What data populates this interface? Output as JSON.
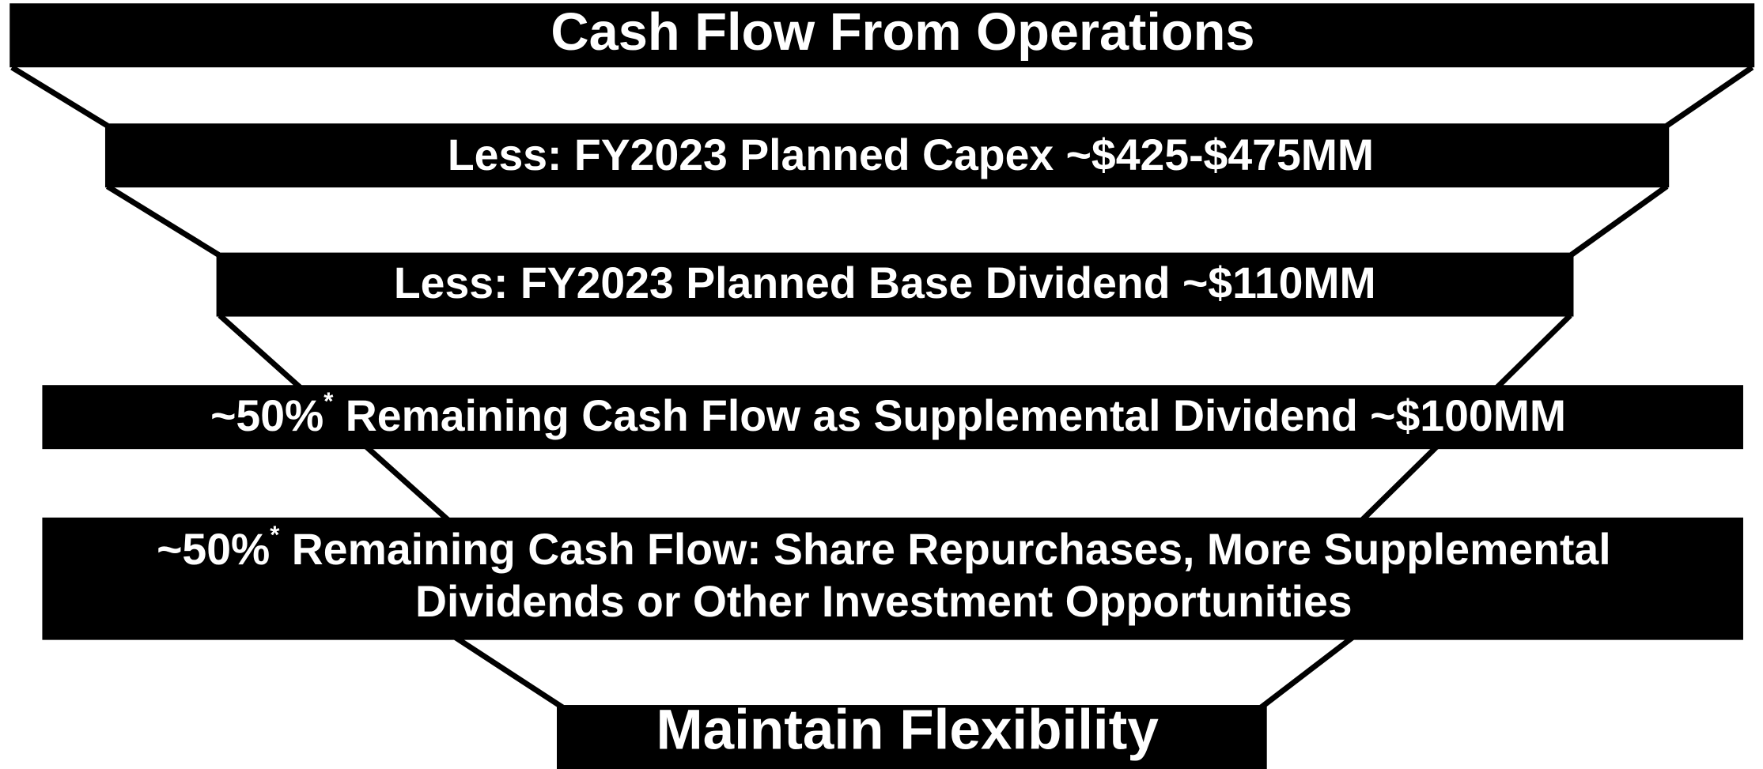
{
  "levels": [
    {
      "text": "Cash Flow From Operations"
    },
    {
      "text": "Less: FY2023 Planned Capex ~$425-$475MM"
    },
    {
      "text": "Less: FY2023 Planned Base Dividend ~$110MM"
    },
    {
      "prefix": "~50%",
      "superscript": "*",
      "text": " Remaining Cash Flow as Supplemental Dividend ~$100MM"
    },
    {
      "prefix": "~50%",
      "superscript": "*",
      "text": " Remaining Cash Flow: Share Repurchases, More Supplemental",
      "line2": "Dividends or Other Investment Opportunities"
    },
    {
      "text": "Maintain Flexibility"
    }
  ]
}
